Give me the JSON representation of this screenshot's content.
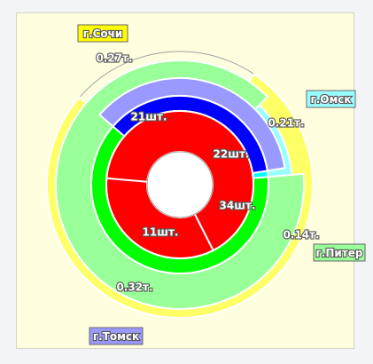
{
  "chart_data": {
    "type": "pie",
    "rings": [
      {
        "ring": "outer",
        "unit_suffix": "т.",
        "slices": [
          {
            "name": "г.Сочи",
            "value": 0.27,
            "label": "0.27т.",
            "color": "#ffff66"
          },
          {
            "name": "г.Омск",
            "value": 0.21,
            "label": "0.21т.",
            "color": "#99ffff"
          },
          {
            "name": "г.Питер",
            "value": 0.14,
            "label": "0.14т.",
            "color": "#99ff99"
          },
          {
            "name": "г.Томск",
            "value": 0.32,
            "label": "0.32т.",
            "color": "#9999ff"
          }
        ]
      },
      {
        "ring": "middle",
        "slices": [
          {
            "name": "г.Сочи",
            "color": "#888800"
          },
          {
            "name": "г.Омск",
            "color": "#00ffff"
          },
          {
            "name": "г.Питер",
            "color": "#00ff00"
          },
          {
            "name": "г.Томск",
            "color": "#0000ff"
          }
        ]
      },
      {
        "ring": "inner",
        "unit_suffix": "шт.",
        "slices": [
          {
            "name": "г.Сочи",
            "value": 21,
            "label": "21шт.",
            "color": "#ff0000"
          },
          {
            "name": "г.Омск",
            "value": 22,
            "label": "22шт.",
            "color": "#ff0000"
          },
          {
            "name": "г.Питер",
            "value": 34,
            "label": "34шт.",
            "color": "#ff0000"
          },
          {
            "name": "г.Томск",
            "value": 11,
            "label": "11шт.",
            "color": "#ff0000"
          }
        ]
      }
    ],
    "legend": [
      {
        "label": "г.Сочи",
        "color": "#ffff00",
        "placement": "top-left"
      },
      {
        "label": "г.Омск",
        "color": "#99ffff",
        "placement": "right"
      },
      {
        "label": "г.Питер",
        "color": "#99ff99",
        "placement": "right"
      },
      {
        "label": "г.Томск",
        "color": "#9999ff",
        "placement": "bottom-left"
      }
    ],
    "background": "#ffffe0"
  }
}
